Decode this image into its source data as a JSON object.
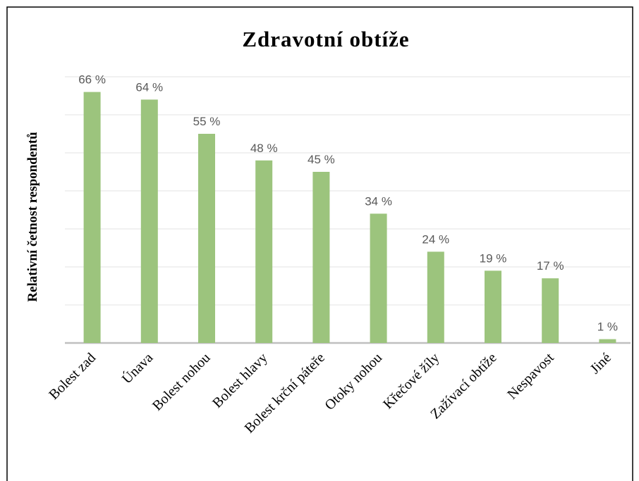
{
  "chart_data": {
    "type": "bar",
    "title": "Zdravotní  obtíže",
    "y_label": "Relativní četnost respondentů",
    "categories": [
      "Bolest zad",
      "Únava",
      "Bolest nohou",
      "Bolest hlavy",
      "Bolest krční  páteře",
      "Otoky nohou",
      "Křečové  žíly",
      "Zažívací  obtíže",
      "Nespavost",
      "Jiné"
    ],
    "values": [
      66,
      64,
      55,
      48,
      45,
      34,
      24,
      19,
      17,
      1
    ],
    "value_labels": [
      "66 %",
      "64 %",
      "55 %",
      "48 %",
      "45 %",
      "34 %",
      "24 %",
      "19 %",
      "17 %",
      "1 %"
    ],
    "color": "#9cc47d",
    "ylim": [
      0,
      70
    ],
    "yticks": [
      0,
      10,
      20,
      30,
      40,
      50,
      60,
      70
    ],
    "grid": true
  }
}
